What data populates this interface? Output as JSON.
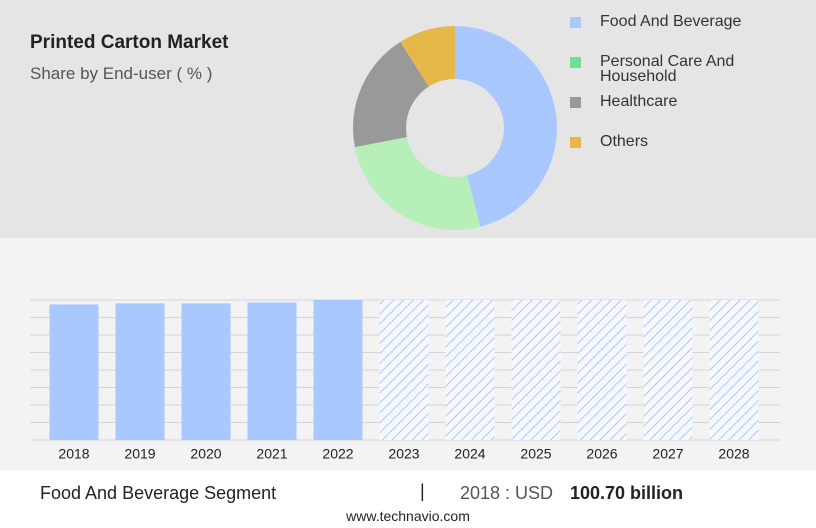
{
  "header": {
    "title": "Printed Carton Market",
    "subtitle": "Share by End-user ( % )"
  },
  "chart_data": [
    {
      "type": "pie",
      "categories": [
        "Food And Beverage",
        "Personal Care And Household",
        "Healthcare",
        "Others"
      ],
      "values": [
        46,
        26,
        19,
        9
      ],
      "colors": [
        "#a9c8ff",
        "#b6f0b8",
        "#999999",
        "#e6b84a"
      ],
      "legend_colors": [
        "#a9c8ff",
        "#6fe08c",
        "#999999",
        "#e6b84a"
      ],
      "hole": 0.48
    },
    {
      "type": "bar",
      "categories": [
        "2018",
        "2019",
        "2020",
        "2021",
        "2022",
        "2023",
        "2024",
        "2025",
        "2026",
        "2027",
        "2028"
      ],
      "values": [
        100.7,
        101.5,
        101.5,
        102.2,
        104,
        104,
        104,
        104,
        104,
        104,
        104
      ],
      "forecast": [
        false,
        false,
        false,
        false,
        false,
        true,
        true,
        true,
        true,
        true,
        true
      ],
      "color": "#a9c8ff",
      "ylim": [
        0,
        104
      ],
      "yticks": [
        0,
        13,
        26,
        39,
        52,
        65,
        78,
        91,
        104
      ],
      "grid": true
    }
  ],
  "footer": {
    "segment": "Food And Beverage Segment",
    "separator": "|",
    "prefix": "2018 : USD",
    "value": "100.70 billion",
    "url": "www.technavio.com"
  }
}
